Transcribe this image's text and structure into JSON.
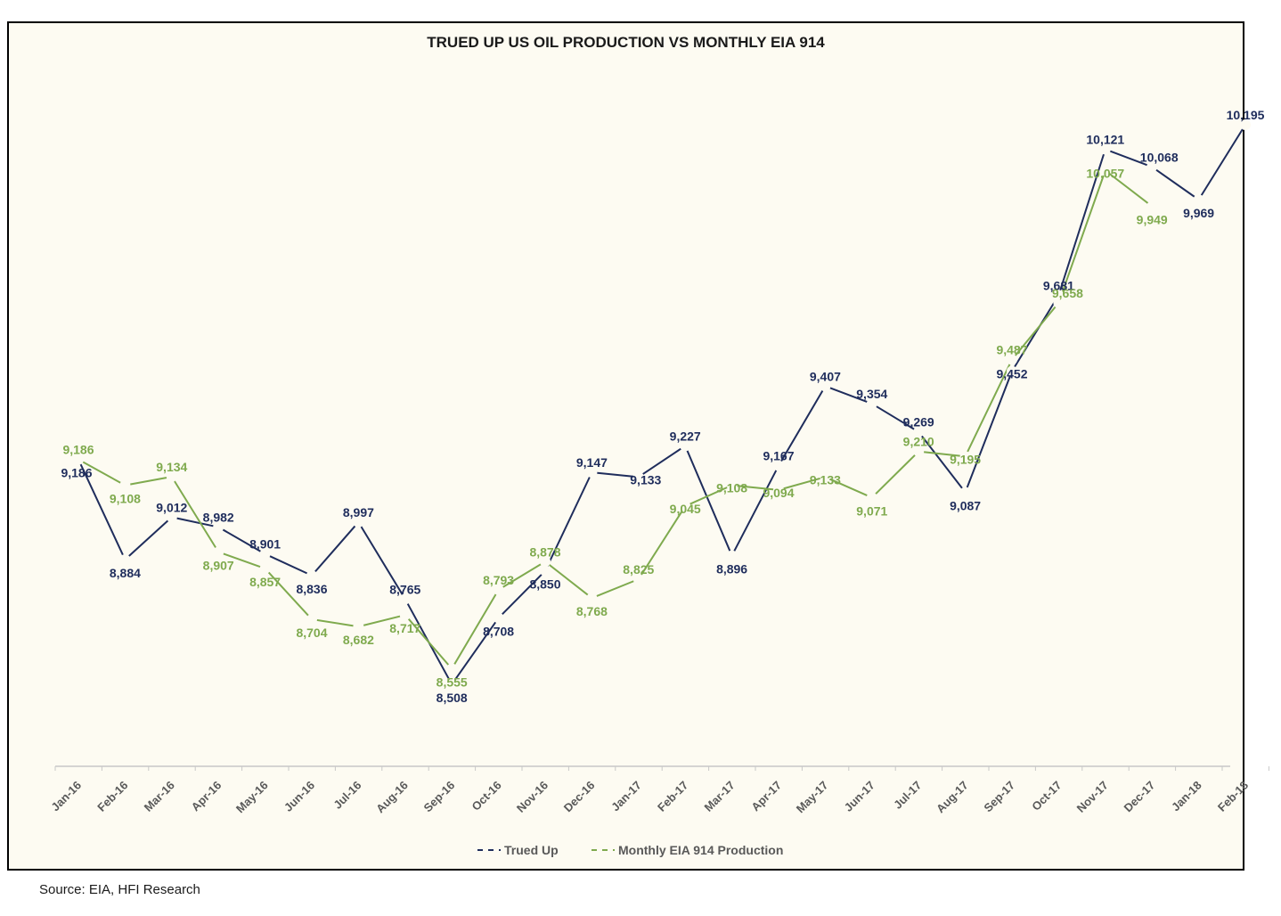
{
  "chart_data": {
    "type": "line",
    "title": "TRUED UP US OIL PRODUCTION VS MONTHLY EIA 914",
    "categories": [
      "Jan-16",
      "Feb-16",
      "Mar-16",
      "Apr-16",
      "May-16",
      "Jun-16",
      "Jul-16",
      "Aug-16",
      "Sep-16",
      "Oct-16",
      "Nov-16",
      "Dec-16",
      "Jan-17",
      "Feb-17",
      "Mar-17",
      "Apr-17",
      "May-17",
      "Jun-17",
      "Jul-17",
      "Aug-17",
      "Sep-17",
      "Oct-17",
      "Nov-17",
      "Dec-17",
      "Jan-18",
      "Feb-18"
    ],
    "series": [
      {
        "name": "Trued Up",
        "color": "#1f2d5c",
        "values": [
          9186,
          8884,
          9012,
          8982,
          8901,
          8836,
          8997,
          8765,
          8508,
          8708,
          8850,
          9147,
          9133,
          9227,
          8896,
          9167,
          9407,
          9354,
          9269,
          9087,
          9452,
          9681,
          10121,
          10068,
          9969,
          10195
        ],
        "labels": [
          "9,186",
          "8,884",
          "9,012",
          "8,982",
          "8,901",
          "8,836",
          "8,997",
          "8,765",
          "8,508",
          "8,708",
          "8,850",
          "9,147",
          "9,133",
          "9,227",
          "8,896",
          "9,167",
          "9,407",
          "9,354",
          "9,269",
          "9,087",
          "9,452",
          "9,681",
          "10,121",
          "10,068",
          "9,969",
          "10,195"
        ]
      },
      {
        "name": "Monthly EIA 914 Production",
        "color": "#7faa4e",
        "values": [
          9186,
          9108,
          9134,
          8907,
          8857,
          8704,
          8682,
          8717,
          8555,
          8793,
          8878,
          8768,
          8825,
          9045,
          9108,
          9094,
          9133,
          9071,
          9210,
          9195,
          9487,
          9658,
          10057,
          9949,
          null,
          null
        ],
        "labels": [
          "9,186",
          "9,108",
          "9,134",
          "8,907",
          "8,857",
          "8,704",
          "8,682",
          "8,717",
          "8,555",
          "8,793",
          "8,878",
          "8,768",
          "8,825",
          "9,045",
          "9,108",
          "9,094",
          "9,133",
          "9,071",
          "9,210",
          "9,195",
          "9,487",
          "9,658",
          "10,057",
          "9,949",
          null,
          null
        ]
      }
    ],
    "grid": false,
    "legend_position": "bottom"
  },
  "footer": {
    "source": "Source: EIA, HFI Research"
  }
}
